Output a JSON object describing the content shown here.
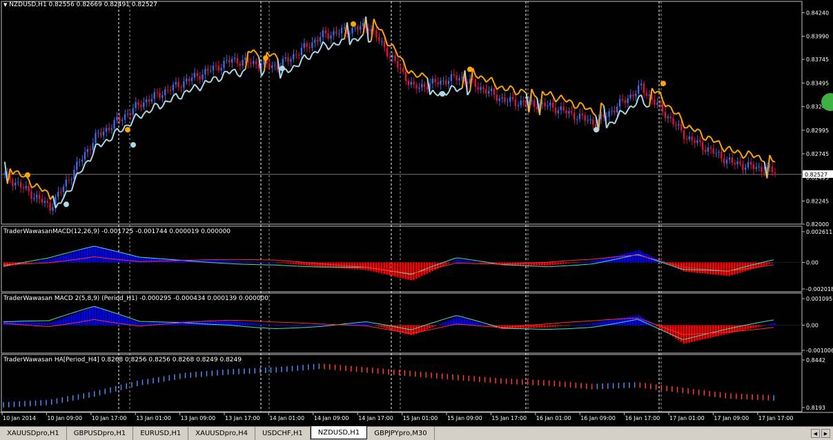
{
  "symbol_header": {
    "arrow_icon": "triangle-down-icon",
    "text": "NZDUSD,H1  0.82556 0.82669 0.82491 0.82527"
  },
  "price_axis": {
    "labels": [
      "0.84240",
      "0.83990",
      "0.83745",
      "0.83495",
      "0.83245",
      "0.82995",
      "0.82745",
      "0.82495",
      "0.82245",
      "0.82000"
    ],
    "current_price": "0.82527"
  },
  "macd1": {
    "label": "TraderWawasanMACD(12,26,9) -0.001725 -0.001744 0.000019 0.000000",
    "axis_labels": [
      "0.002611",
      "0.00",
      "-0.002018"
    ]
  },
  "macd2": {
    "label": "TraderWawasan MACD 2(5,8,9) (Period_H1) -0.000295 -0.000434 0.000139 0.000000",
    "axis_labels": [
      "0.001095",
      "0.00",
      "-0.001006"
    ]
  },
  "ha": {
    "label": "TraderWawasan HA[Period_H4] 0.8268 0.8256 0.8256 0.8268 0.8249 0.8249",
    "axis_labels": [
      "0.8442",
      "0.8193"
    ]
  },
  "time_axis": {
    "labels": [
      "10 Jan 2014",
      "10 Jan 09:00",
      "10 Jan 17:00",
      "13 Jan 01:00",
      "13 Jan 09:00",
      "13 Jan 17:00",
      "14 Jan 01:00",
      "14 Jan 09:00",
      "14 Jan 17:00",
      "15 Jan 01:00",
      "15 Jan 09:00",
      "15 Jan 17:00",
      "16 Jan 01:00",
      "16 Jan 09:00",
      "16 Jan 17:00",
      "17 Jan 01:00",
      "17 Jan 09:00",
      "17 Jan 17:00"
    ]
  },
  "tabs": [
    {
      "label": "XAUUSDpro,H1",
      "active": false
    },
    {
      "label": "GBPUSDpro,H1",
      "active": false
    },
    {
      "label": "EURUSD,H1",
      "active": false
    },
    {
      "label": "XAUUSDpro,H4",
      "active": false
    },
    {
      "label": "USDCHF,H1",
      "active": false
    },
    {
      "label": "NZDUSD,H1",
      "active": true
    },
    {
      "label": "GBPJPYpro,M30",
      "active": false
    }
  ],
  "colors": {
    "bull": "#4169e1",
    "bear": "#dc143c",
    "trail_support": "#add8e6",
    "trail_resist": "#ffa500",
    "macd_hist_pos": "#0000ff",
    "macd_hist_neg": "#ff0000",
    "signal_line": "#ff3030",
    "macd_line": "#40e0d0",
    "ha_bull": "#4a8cf0",
    "ha_bear": "#ff4020"
  },
  "chart_data": {
    "type": "line",
    "x": [
      "10 Jan 2014",
      "10 Jan 09:00",
      "10 Jan 17:00",
      "13 Jan 01:00",
      "13 Jan 09:00",
      "13 Jan 17:00",
      "14 Jan 01:00",
      "14 Jan 09:00",
      "14 Jan 17:00",
      "15 Jan 01:00",
      "15 Jan 09:00",
      "15 Jan 17:00",
      "16 Jan 01:00",
      "16 Jan 09:00",
      "16 Jan 17:00",
      "17 Jan 01:00",
      "17 Jan 09:00",
      "17 Jan 17:00"
    ],
    "series": [
      {
        "values": [
          0.8252,
          0.8218,
          0.8292,
          0.8328,
          0.8352,
          0.8374,
          0.8367,
          0.84,
          0.841,
          0.8344,
          0.8356,
          0.8331,
          0.8325,
          0.8307,
          0.8345,
          0.8292,
          0.8265,
          0.8255
        ]
      }
    ],
    "ylim": [
      0.82,
      0.8436
    ],
    "macd_main_hist": [
      -0.0003,
      0.0002,
      0.0011,
      0.0003,
      0.0002,
      0.0001,
      0.0,
      -0.0003,
      -0.0005,
      -0.0012,
      0.0002,
      -0.0002,
      -0.0002,
      0.0001,
      0.0008,
      -0.0006,
      -0.0009,
      0.0
    ],
    "macd_fast_hist": [
      0.0002,
      0.0001,
      0.0009,
      0.0001,
      0.0002,
      0.0002,
      0.0,
      0.0,
      0.0001,
      -0.0005,
      0.0004,
      -0.0002,
      -0.0001,
      0.0001,
      0.0005,
      -0.0009,
      -0.0004,
      0.0001
    ],
    "ha_h4": [
      0.8212,
      0.8225,
      0.827,
      0.833,
      0.837,
      0.839,
      0.84,
      0.842,
      0.84,
      0.838,
      0.836,
      0.834,
      0.833,
      0.831,
      0.832,
      0.829,
      0.826,
      0.8249
    ]
  }
}
